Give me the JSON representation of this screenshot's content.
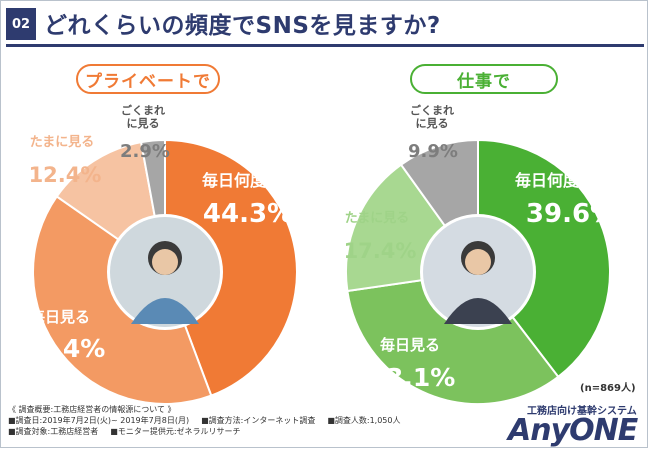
{
  "header": {
    "badge": "02",
    "title": "どれくらいの頻度でSNSを見ますか?"
  },
  "chart_data": [
    {
      "type": "pie",
      "title": "プライベートで",
      "categories": [
        "毎日何度も見る",
        "毎日見る",
        "たまに見る",
        "ごくまれに見る"
      ],
      "values": [
        44.3,
        40.4,
        12.4,
        2.9
      ],
      "value_labels": [
        "44.3%",
        "40.4%",
        "12.4%",
        "2.9%"
      ],
      "colors": [
        "#f07a35",
        "#f39a63",
        "#f6c3a2",
        "#a6a6a6"
      ]
    },
    {
      "type": "pie",
      "title": "仕事で",
      "categories": [
        "毎日何度も見る",
        "毎日見る",
        "たまに見る",
        "ごくまれに見る"
      ],
      "values": [
        39.6,
        33.1,
        17.4,
        9.9
      ],
      "value_labels": [
        "39.6%",
        "33.1%",
        "17.4%",
        "9.9%"
      ],
      "colors": [
        "#4ab034",
        "#7cc25d",
        "#a8d891",
        "#a6a6a6"
      ]
    }
  ],
  "label_colors": {
    "left": [
      "#ffffff",
      "#ffffff",
      "#f3b48c",
      "#7d7d7d"
    ],
    "right": [
      "#ffffff",
      "#ffffff",
      "#9fd388",
      "#7d7d7d"
    ],
    "rare_caption": "#555555"
  },
  "n_label": "(n=869人)",
  "notes": {
    "title": "《 調査概要:工務店経営者の情報源について 》",
    "date": "■調査日:2019年7月2日(火)~ 2019年7月8日(月)",
    "method": "■調査方法:インターネット調査",
    "count": "■調査人数:1,050人",
    "target": "■調査対象:工務店経営者",
    "provider": "■モニター提供元:ゼネラルリサーチ"
  },
  "logo": {
    "sub": "工務店向け基幹システム",
    "main": "AnyONE"
  }
}
